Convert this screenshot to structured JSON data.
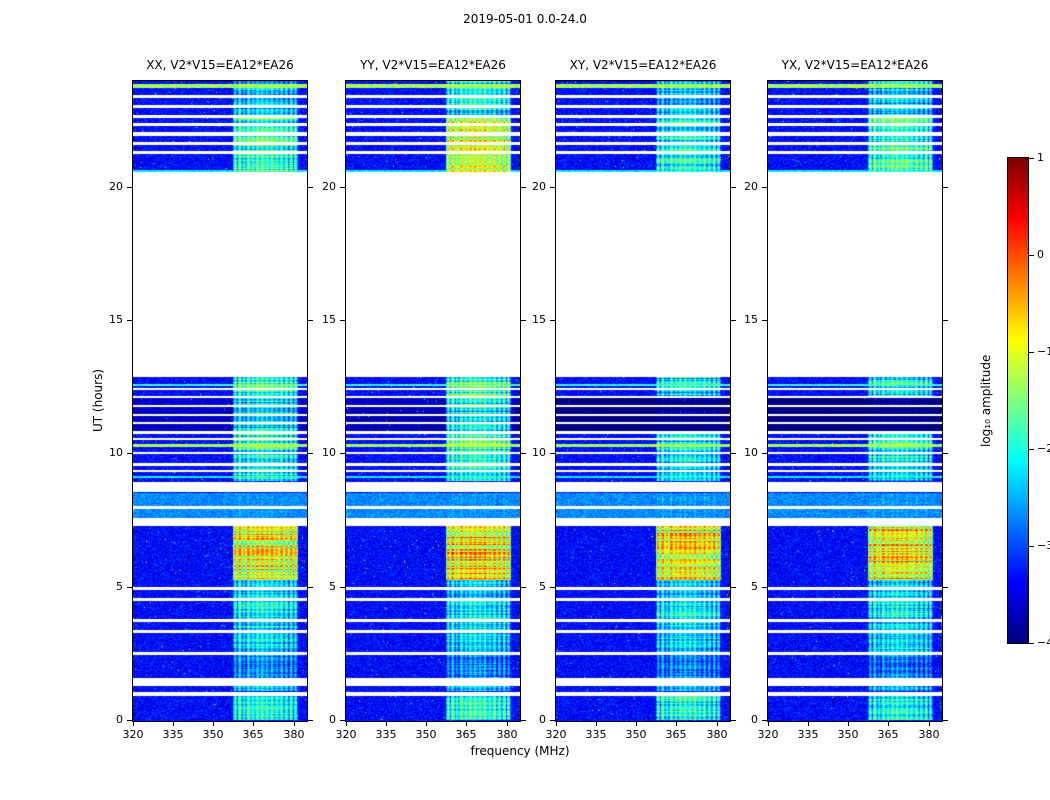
{
  "chart_data": {
    "type": "heatmap",
    "title": "2019-05-01 0.0-24.0",
    "panels": [
      {
        "title": "XX, V2*V15=EA12*EA26"
      },
      {
        "title": "YY, V2*V15=EA12*EA26"
      },
      {
        "title": "XY, V2*V15=EA12*EA26"
      },
      {
        "title": "YX, V2*V15=EA12*EA26"
      }
    ],
    "x": {
      "label": "frequency (MHz)",
      "range": [
        320,
        385
      ],
      "ticks": [
        320,
        335,
        350,
        365,
        380
      ]
    },
    "y": {
      "label": "UT (hours)",
      "range": [
        0,
        24
      ],
      "ticks": [
        0,
        5,
        10,
        15,
        20
      ]
    },
    "colorbar": {
      "label": "log₁₀ amplitude",
      "range": [
        -4,
        1
      ],
      "ticks": [
        1,
        0,
        -1,
        -2,
        -3,
        -4
      ],
      "colormap": "jet"
    },
    "base_level": -3.35,
    "noise_spread": 0.5,
    "gaps": [
      [
        12.9,
        20.57
      ],
      [
        0.93,
        1.1
      ],
      [
        1.3,
        1.62
      ],
      [
        2.48,
        2.6
      ],
      [
        3.3,
        3.42
      ],
      [
        3.72,
        3.82
      ],
      [
        4.5,
        4.62
      ],
      [
        4.92,
        5.02
      ],
      [
        7.3,
        7.62
      ],
      [
        7.95,
        8.07
      ],
      [
        8.58,
        8.95
      ],
      [
        9.33,
        9.43
      ],
      [
        9.58,
        9.68
      ],
      [
        10.0,
        10.08
      ],
      [
        10.52,
        10.62
      ],
      [
        10.78,
        10.86
      ],
      [
        11.14,
        11.22
      ],
      [
        11.44,
        11.52
      ],
      [
        11.76,
        11.84
      ],
      [
        12.12,
        12.2
      ],
      [
        12.4,
        12.47
      ],
      [
        21.25,
        21.38
      ],
      [
        21.6,
        21.72
      ],
      [
        21.95,
        22.07
      ],
      [
        22.3,
        22.42
      ],
      [
        22.62,
        22.72
      ],
      [
        23.0,
        23.1
      ],
      [
        23.38,
        23.48
      ]
    ],
    "broad_rows": [
      [
        7.62,
        8.55,
        -2.7
      ]
    ],
    "bright_rows": [
      [
        23.82,
        -1.3,
        0.07
      ],
      [
        12.6,
        -1.9,
        0.05
      ],
      [
        10.32,
        -1.3,
        0.06
      ],
      [
        9.15,
        -2.1,
        0.05
      ],
      [
        20.62,
        -2.2,
        0.04
      ]
    ],
    "dark_rows": [
      [
        10.86,
        11.14,
        1.0
      ],
      [
        11.22,
        11.44,
        1.0
      ],
      [
        11.52,
        11.76,
        0.9
      ],
      [
        11.84,
        12.12,
        0.75
      ]
    ],
    "dark_pm": [
      0.15,
      0.2,
      1.0,
      1.0
    ],
    "rfi": {
      "band": [
        357,
        381.5
      ],
      "channels": [
        [
          358.2,
          0.8,
          0.85
        ],
        [
          359.9,
          0.9,
          1.0
        ],
        [
          361.5,
          0.7,
          0.75
        ],
        [
          363.1,
          0.9,
          1.0
        ],
        [
          364.9,
          0.8,
          0.85
        ],
        [
          366.5,
          0.9,
          0.95
        ],
        [
          368.3,
          0.8,
          1.0
        ],
        [
          370.1,
          0.9,
          0.9
        ],
        [
          371.9,
          0.8,
          1.0
        ],
        [
          373.7,
          0.9,
          0.8
        ],
        [
          375.5,
          0.8,
          0.95
        ],
        [
          377.3,
          0.9,
          0.85
        ],
        [
          379.1,
          0.8,
          0.95
        ],
        [
          380.7,
          0.8,
          0.8
        ],
        [
          369.2,
          12.3,
          0.6
        ]
      ],
      "segments": [
        {
          "t": [
            0.05,
            0.93
          ],
          "level": -1.5,
          "rowvar": 0.9,
          "pm": [
            0,
            0,
            0.05,
            0
          ]
        },
        {
          "t": [
            1.12,
            1.3
          ],
          "level": -1.9,
          "rowvar": 0.6,
          "pm": [
            0,
            0,
            0,
            0
          ]
        },
        {
          "t": [
            1.62,
            2.48
          ],
          "level": -2.3,
          "rowvar": 0.6,
          "pm": [
            0,
            0,
            0,
            0
          ]
        },
        {
          "t": [
            2.6,
            3.3
          ],
          "level": -1.8,
          "rowvar": 0.8,
          "pm": [
            0,
            0,
            0,
            0
          ]
        },
        {
          "t": [
            3.42,
            4.5
          ],
          "level": -1.7,
          "rowvar": 0.9,
          "pm": [
            0,
            0,
            0,
            0
          ]
        },
        {
          "t": [
            4.62,
            5.3
          ],
          "level": -1.9,
          "rowvar": 0.7,
          "pm": [
            0,
            0,
            0,
            0
          ]
        },
        {
          "t": [
            5.3,
            7.3
          ],
          "level": -0.45,
          "rowvar": 1.5,
          "pm": [
            0,
            0.2,
            0.05,
            0.1
          ]
        },
        {
          "t": [
            7.62,
            8.55
          ],
          "level": -2.4,
          "rowvar": 0.5,
          "pm": [
            0,
            0,
            0,
            0
          ]
        },
        {
          "t": [
            9.0,
            10.2
          ],
          "level": -1.6,
          "rowvar": 1.0,
          "pm": [
            0,
            0,
            -0.1,
            -0.1
          ]
        },
        {
          "t": [
            10.2,
            12.9
          ],
          "level": -1.35,
          "rowvar": 1.3,
          "pm": [
            0,
            0.1,
            -0.35,
            -0.35
          ]
        },
        {
          "t": [
            20.6,
            22.72
          ],
          "level": -1.5,
          "rowvar": 1.1,
          "pm": [
            0.1,
            0.95,
            -0.1,
            0.15
          ]
        },
        {
          "t": [
            22.72,
            24.0
          ],
          "level": -1.9,
          "rowvar": 0.9,
          "pm": [
            0,
            0.2,
            0,
            0
          ]
        }
      ]
    }
  }
}
